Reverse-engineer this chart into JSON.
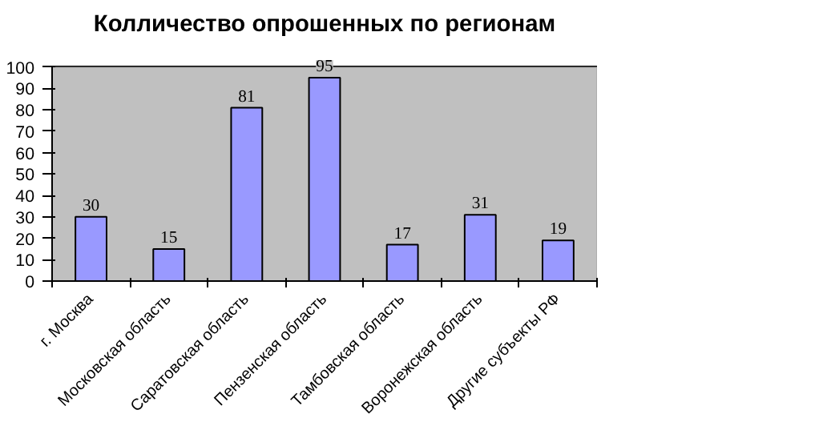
{
  "chart_data": {
    "type": "bar",
    "title": "Колличество опрошенных по регионам",
    "categories": [
      "г. Москва",
      "Московская область",
      "Саратовская область",
      "Пензенская область",
      "Тамбовская область",
      "Воронежская область",
      "Другие субъекты РФ"
    ],
    "values": [
      30,
      15,
      81,
      95,
      17,
      31,
      19
    ],
    "color": "#9999ff",
    "ylim": [
      0,
      100
    ],
    "yticks": [
      0,
      10,
      20,
      30,
      40,
      50,
      60,
      70,
      80,
      90,
      100
    ],
    "grid": "y",
    "data_labels": true
  }
}
